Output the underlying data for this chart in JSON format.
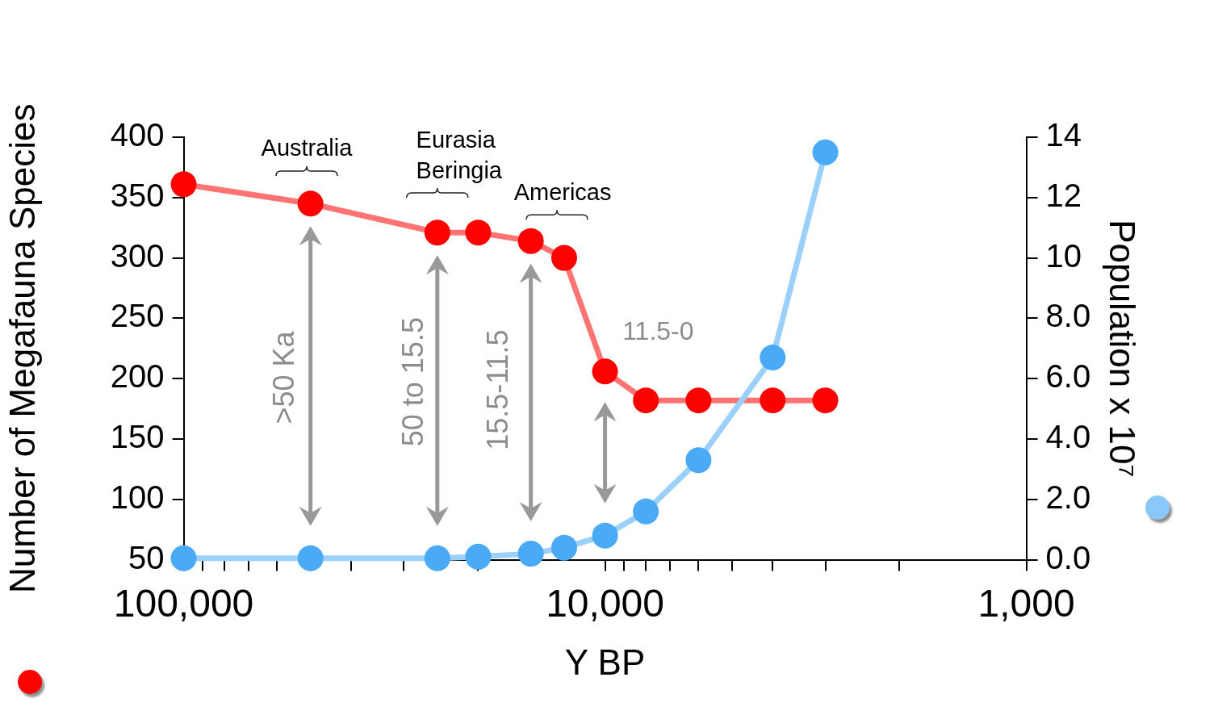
{
  "chart_data": {
    "type": "line",
    "xlabel": "Y BP",
    "ylabel": "Number of Megafauna Species",
    "y2label": "Population x 10⁷",
    "x": [
      100000,
      50000,
      25000,
      20000,
      15000,
      12500,
      10000,
      8000,
      6000,
      4000,
      3000
    ],
    "series": [
      {
        "color": "#ff0000",
        "values": [
          361,
          345,
          321,
          321,
          314,
          300,
          206,
          182,
          182,
          182,
          182
        ]
      },
      {
        "color": "#4aaaf5",
        "axis": "y2",
        "values": [
          0.05,
          0.05,
          0.05,
          0.1,
          0.2,
          0.4,
          0.8,
          1.6,
          3.3,
          6.7,
          13.5
        ]
      }
    ],
    "log": "x",
    "xlim": [
      100000,
      1000
    ],
    "xticks": [
      {
        "value": 100000,
        "label": "100,000"
      },
      {
        "value": 90000,
        "label": null
      },
      {
        "value": 80000,
        "label": null
      },
      {
        "value": 70000,
        "label": null
      },
      {
        "value": 60000,
        "label": null
      },
      {
        "value": 50000,
        "label": null
      },
      {
        "value": 40000,
        "label": null
      },
      {
        "value": 30000,
        "label": null
      },
      {
        "value": 20000,
        "label": null
      },
      {
        "value": 10000,
        "label": "10,000"
      },
      {
        "value": 9000,
        "label": null
      },
      {
        "value": 8000,
        "label": null
      },
      {
        "value": 7000,
        "label": null
      },
      {
        "value": 6000,
        "label": null
      },
      {
        "value": 5000,
        "label": null
      },
      {
        "value": 4000,
        "label": null
      },
      {
        "value": 3000,
        "label": null
      },
      {
        "value": 2000,
        "label": null
      },
      {
        "value": 1000,
        "label": "1,000"
      }
    ],
    "ylim": [
      50,
      400
    ],
    "yticks": [
      50,
      100,
      150,
      200,
      250,
      300,
      350,
      400
    ],
    "y2lim": [
      0,
      14
    ],
    "y2ticks": [
      {
        "value": 0,
        "label": "0.0"
      },
      {
        "value": 2,
        "label": "2.0"
      },
      {
        "value": 4,
        "label": "4.0"
      },
      {
        "value": 6,
        "label": "6.0"
      },
      {
        "value": 8,
        "label": "8.0"
      },
      10,
      12,
      14
    ],
    "grid": false,
    "legend": false,
    "marker": "circle",
    "line_style": "solid",
    "annotations": [
      "Australia",
      "Eurasia\nBeringia",
      "Americas",
      ">50 Ka",
      "50 to 15.5",
      "15.5-11.5",
      "11.5-0"
    ]
  }
}
